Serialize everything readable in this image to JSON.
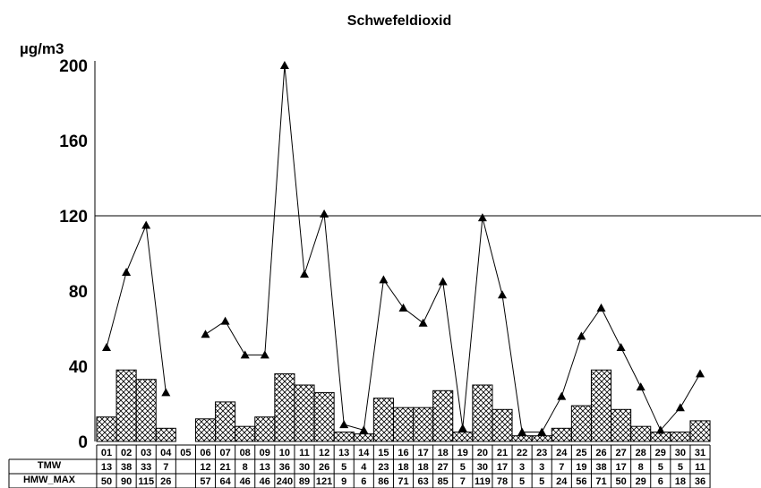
{
  "chart_data": {
    "type": "bar",
    "title": "Schwefeldioxid",
    "ylabel": "µg/m3",
    "ylim": [
      0,
      200
    ],
    "yticks": [
      0,
      40,
      80,
      120,
      160,
      200
    ],
    "threshold": 120,
    "categories": [
      "01",
      "02",
      "03",
      "04",
      "05",
      "06",
      "07",
      "08",
      "09",
      "10",
      "11",
      "12",
      "13",
      "14",
      "15",
      "16",
      "17",
      "18",
      "19",
      "20",
      "21",
      "22",
      "23",
      "24",
      "25",
      "26",
      "27",
      "28",
      "29",
      "30",
      "31"
    ],
    "series": [
      {
        "name": "TMW",
        "kind": "bar",
        "values": [
          13,
          38,
          33,
          7,
          null,
          12,
          21,
          8,
          13,
          36,
          30,
          26,
          5,
          4,
          23,
          18,
          18,
          27,
          5,
          30,
          17,
          3,
          3,
          7,
          19,
          38,
          17,
          8,
          5,
          5,
          11
        ]
      },
      {
        "name": "HMW_MAX",
        "kind": "line-marker",
        "values": [
          50,
          90,
          115,
          26,
          null,
          57,
          64,
          46,
          46,
          240,
          89,
          121,
          9,
          6,
          86,
          71,
          63,
          85,
          7,
          119,
          78,
          5,
          5,
          24,
          56,
          71,
          50,
          29,
          6,
          18,
          36
        ]
      }
    ],
    "table": {
      "tmw_label": "TMW",
      "hmw_label": "HMW_MAX",
      "tmw_display": [
        "13",
        "38",
        "33",
        "7",
        "",
        "12",
        "21",
        "8",
        "13",
        "36",
        "30",
        "26",
        "5",
        "4",
        "23",
        "18",
        "18",
        "27",
        "5",
        "30",
        "17",
        "3",
        "3",
        "7",
        "19",
        "38",
        "17",
        "8",
        "5",
        "5",
        "11"
      ],
      "hmw_display": [
        "50",
        "90",
        "115",
        "26",
        "",
        "57",
        "64",
        "46",
        "46",
        "240",
        "89",
        "121",
        "9",
        "6",
        "86",
        "71",
        "63",
        "85",
        "7",
        "119",
        "78",
        "5",
        "5",
        "24",
        "56",
        "71",
        "50",
        "29",
        "6",
        "18",
        "36"
      ]
    },
    "colors": {
      "bar_fill": "#ffffff",
      "hatch": "#000000",
      "line": "#000000",
      "text": "#000000"
    }
  }
}
